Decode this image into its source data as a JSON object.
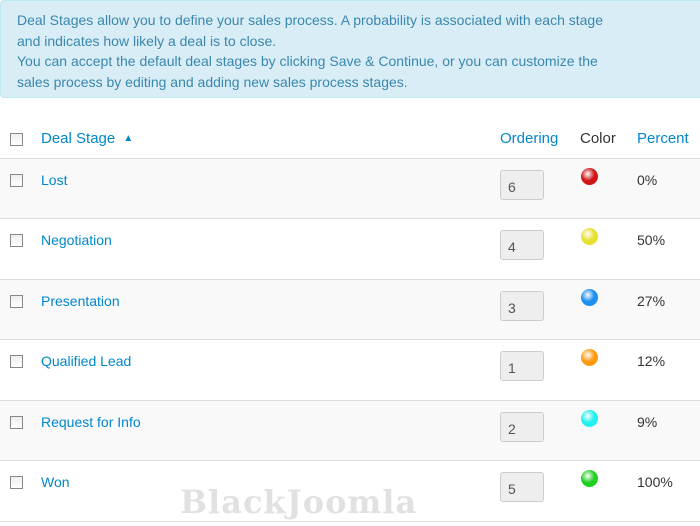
{
  "info": {
    "line1": "Deal Stages allow you to define your sales process. A probability is associated with each stage",
    "line2": "and indicates how likely a deal is to close.",
    "line3": "You can accept the default deal stages by clicking Save & Continue, or you can customize the",
    "line4": "sales process by editing and adding new sales process stages."
  },
  "table": {
    "headers": {
      "stage": "Deal Stage",
      "sort_icon": "▲",
      "ordering": "Ordering",
      "color": "Color",
      "percent": "Percent"
    },
    "rows": [
      {
        "name": "Lost",
        "ordering": "6",
        "color": "#d01515",
        "percent": "0%"
      },
      {
        "name": "Negotiation",
        "ordering": "4",
        "color": "#e6e030",
        "percent": "50%"
      },
      {
        "name": "Presentation",
        "ordering": "3",
        "color": "#1a8ff0",
        "percent": "27%"
      },
      {
        "name": "Qualified Lead",
        "ordering": "1",
        "color": "#ff9a10",
        "percent": "12%"
      },
      {
        "name": "Request for Info",
        "ordering": "2",
        "color": "#20f0f0",
        "percent": "9%"
      },
      {
        "name": "Won",
        "ordering": "5",
        "color": "#20d020",
        "percent": "100%"
      }
    ]
  },
  "watermark": "BlackJoomla"
}
